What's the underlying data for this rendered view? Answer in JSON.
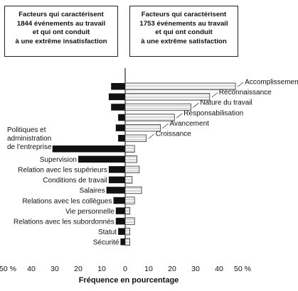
{
  "legend": {
    "negative": "Facteurs qui caractérisent\n1844 événements au travail\net qui ont conduit\nà une extrême insatisfaction",
    "positive": "Facteurs qui caractérisent\n1753 événements au travail\net qui ont conduit\nà une extrême satisfaction"
  },
  "chart_data": {
    "type": "bar",
    "orientation": "horizontal-diverging",
    "xlabel": "Fréquence en pourcentage",
    "xlim": [
      -50,
      50
    ],
    "xticks": [
      "50 %",
      "40",
      "30",
      "20",
      "10",
      "0",
      "10",
      "20",
      "30",
      "40",
      "50 %"
    ],
    "colors": {
      "negative": "#111111",
      "positive": "#f4f4f4",
      "positive_stripe": "#888888"
    },
    "motivators": [
      {
        "label": "Accomplissement",
        "neg": 6,
        "pos": 47
      },
      {
        "label": "Reconnaissance",
        "neg": 7,
        "pos": 36
      },
      {
        "label": "Nature du travail",
        "neg": 6,
        "pos": 28
      },
      {
        "label": "Responsabilisation",
        "neg": 3,
        "pos": 21
      },
      {
        "label": "Avancement",
        "neg": 4,
        "pos": 15
      },
      {
        "label": "Croissance",
        "neg": 3,
        "pos": 9
      }
    ],
    "hygiene": [
      {
        "label": "Politiques et\nadministration\nde l'entreprise",
        "neg": 31,
        "pos": 4
      },
      {
        "label": "Supervision",
        "neg": 20,
        "pos": 5
      },
      {
        "label": "Relation avec les supérieurs",
        "neg": 7,
        "pos": 6
      },
      {
        "label": "Conditions de travail",
        "neg": 7,
        "pos": 3
      },
      {
        "label": "Salaires",
        "neg": 8,
        "pos": 7
      },
      {
        "label": "Relations avec les collègues",
        "neg": 5,
        "pos": 4
      },
      {
        "label": "Vie personnelle",
        "neg": 4,
        "pos": 2
      },
      {
        "label": "Relations avec les subordonnés",
        "neg": 4,
        "pos": 4
      },
      {
        "label": "Statut",
        "neg": 3,
        "pos": 2
      },
      {
        "label": "Sécurité",
        "neg": 2,
        "pos": 2
      }
    ]
  }
}
